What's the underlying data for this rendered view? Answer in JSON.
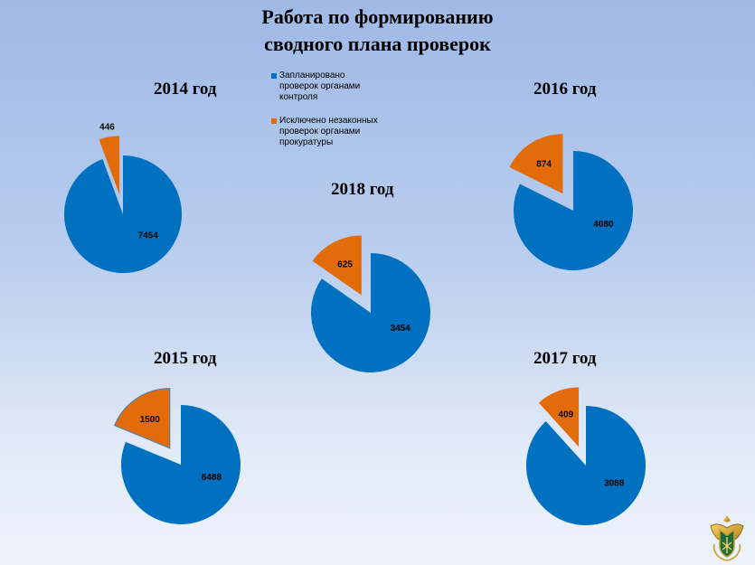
{
  "title": [
    "Работа по формированию",
    "сводного плана проверок"
  ],
  "legend": [
    {
      "label": "Запланировано проверок органами контроля",
      "color": "#0070c0"
    },
    {
      "label": "Исключено незаконных проверок органами прокуратуры",
      "color": "#e36c0a"
    }
  ],
  "chart_data": [
    {
      "type": "pie",
      "title": "2014 год",
      "categories": [
        "Запланировано проверок органами контроля",
        "Исключено незаконных проверок органами прокуратуры"
      ],
      "values": [
        7454,
        446
      ],
      "colors": [
        "#0070c0",
        "#e36c0a"
      ],
      "exploded": [
        false,
        true
      ]
    },
    {
      "type": "pie",
      "title": "2015 год",
      "categories": [
        "Запланировано проверок органами контроля",
        "Исключено незаконных проверок органами прокуратуры"
      ],
      "values": [
        6488,
        1500
      ],
      "colors": [
        "#0070c0",
        "#e36c0a"
      ],
      "exploded": [
        false,
        true
      ]
    },
    {
      "type": "pie",
      "title": "2016 год",
      "categories": [
        "Запланировано проверок органами контроля",
        "Исключено незаконных проверок органами прокуратуры"
      ],
      "values": [
        4080,
        874
      ],
      "colors": [
        "#0070c0",
        "#e36c0a"
      ],
      "exploded": [
        false,
        true
      ]
    },
    {
      "type": "pie",
      "title": "2017 год",
      "categories": [
        "Запланировано проверок органами контроля",
        "Исключено незаконных проверок органами прокуратуры"
      ],
      "values": [
        3088,
        409
      ],
      "colors": [
        "#0070c0",
        "#e36c0a"
      ],
      "exploded": [
        false,
        true
      ]
    },
    {
      "type": "pie",
      "title": "2018 год",
      "categories": [
        "Запланировано проверок органами контроля",
        "Исключено незаконных проверок органами прокуратуры"
      ],
      "values": [
        3454,
        625
      ],
      "colors": [
        "#0070c0",
        "#e36c0a"
      ],
      "exploded": [
        false,
        true
      ]
    }
  ]
}
